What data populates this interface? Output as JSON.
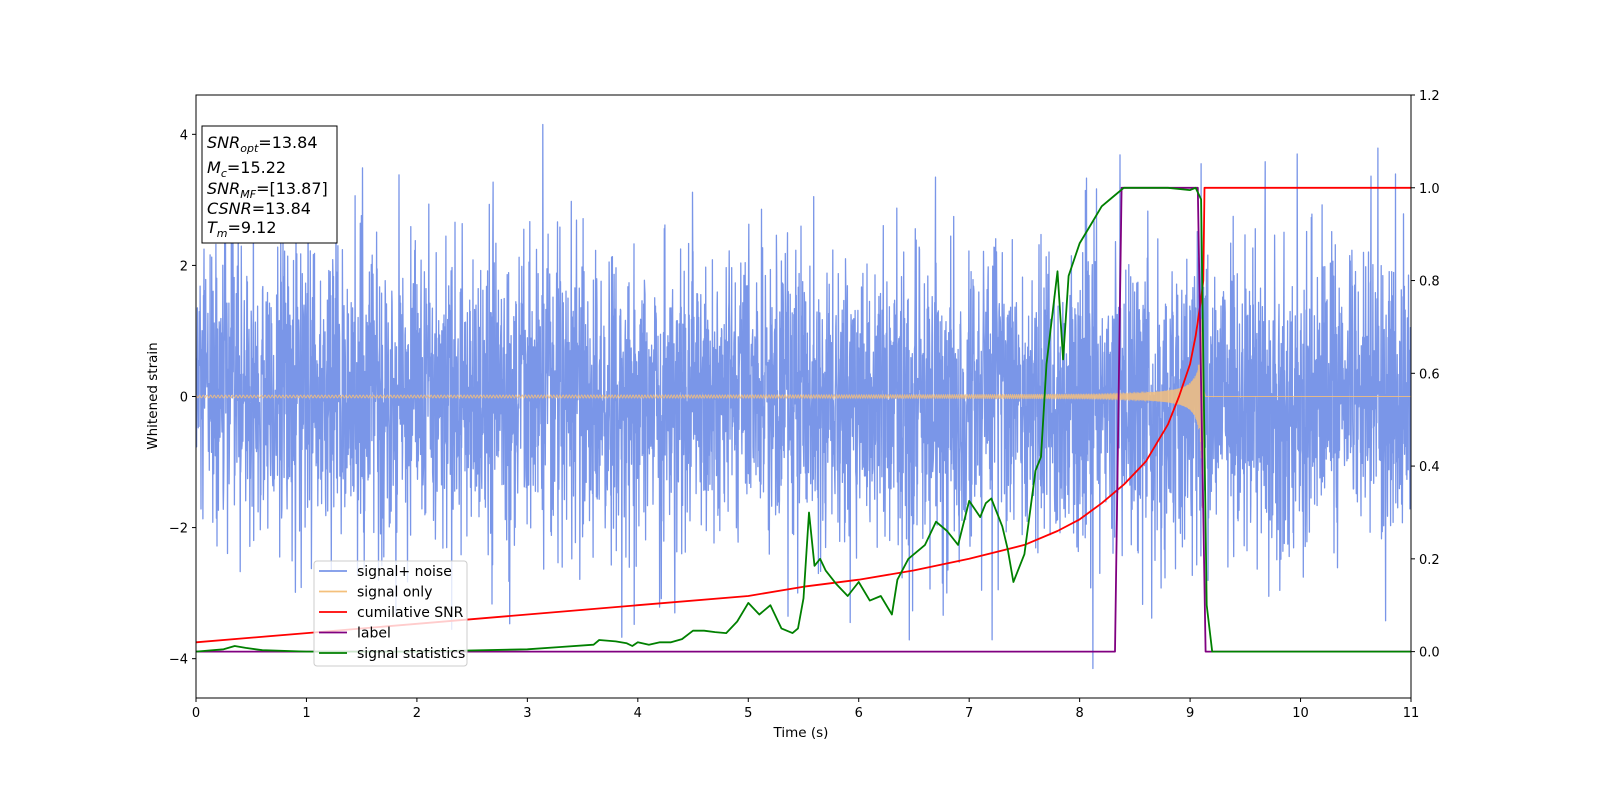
{
  "chart_data": {
    "type": "line",
    "title": "",
    "xlabel": "Time (s)",
    "ylabel": "Whitened strain",
    "y2label": "",
    "xlim": [
      0,
      11
    ],
    "ylim": [
      -4.6,
      4.6
    ],
    "y2lim": [
      -0.1,
      1.2
    ],
    "x_ticks": [
      0,
      1,
      2,
      3,
      4,
      5,
      6,
      7,
      8,
      9,
      10,
      11
    ],
    "y_ticks": [
      -4,
      -2,
      0,
      2,
      4
    ],
    "y2_ticks": [
      0.0,
      0.2,
      0.4,
      0.6,
      0.8,
      1.0,
      1.2
    ],
    "x_tick_labels": [
      "0",
      "1",
      "2",
      "3",
      "4",
      "5",
      "6",
      "7",
      "8",
      "9",
      "10",
      "11"
    ],
    "y_tick_labels": [
      "−4",
      "−2",
      "0",
      "2",
      "4"
    ],
    "y2_tick_labels": [
      "0.0",
      "0.2",
      "0.4",
      "0.6",
      "0.8",
      "1.0",
      "1.2"
    ],
    "grid": false,
    "legend_position": "lower-left",
    "info_box": {
      "position": "top-left",
      "lines": [
        {
          "base": "SNR",
          "sub": "opt",
          "rest": "=13.84"
        },
        {
          "base": "M",
          "sub": "c",
          "rest": "=15.22"
        },
        {
          "base": "SNR",
          "sub": "MF",
          "rest": "=[13.87]"
        },
        {
          "base": "CSNR",
          "sub": "",
          "rest": "=13.84"
        },
        {
          "base": "T",
          "sub": "m",
          "rest": "=9.12"
        }
      ]
    },
    "series": [
      {
        "name": "signal+ noise",
        "axis": "left",
        "color": "#7a96e8",
        "style": "noise",
        "sample_rate": 400,
        "std": 1.15,
        "spike_range": [
          -3.9,
          4.15
        ],
        "notable_spikes": [
          [
            3.14,
            4.15
          ],
          [
            8.12,
            -4.15
          ],
          [
            9.1,
            3.55
          ],
          [
            9.97,
            3.7
          ]
        ]
      },
      {
        "name": "signal only",
        "axis": "left",
        "color": "#f4c07c",
        "style": "chirp",
        "merger_time": 9.12,
        "early_amplitude": 0.02,
        "peak_amplitude": 1.8
      },
      {
        "name": "cumilative SNR",
        "axis": "right",
        "color": "#ff0000",
        "x": [
          0,
          1,
          2,
          3,
          4,
          5,
          5.5,
          6,
          6.5,
          7,
          7.5,
          7.8,
          8,
          8.2,
          8.4,
          8.6,
          8.8,
          8.9,
          9.0,
          9.05,
          9.1,
          9.12,
          9.13,
          11
        ],
        "y": [
          0.02,
          0.04,
          0.06,
          0.08,
          0.1,
          0.12,
          0.14,
          0.155,
          0.175,
          0.2,
          0.23,
          0.26,
          0.285,
          0.32,
          0.36,
          0.41,
          0.49,
          0.55,
          0.62,
          0.68,
          0.76,
          0.8,
          1.0,
          1.0
        ]
      },
      {
        "name": "label",
        "axis": "right",
        "color": "#800080",
        "x": [
          0,
          8.32,
          8.38,
          9.07,
          9.14,
          11
        ],
        "y": [
          0,
          0,
          1,
          1,
          0,
          0
        ]
      },
      {
        "name": "signal statistics",
        "axis": "right",
        "color": "#008000",
        "x": [
          0,
          0.25,
          0.35,
          0.45,
          0.6,
          1,
          2,
          3,
          3.3,
          3.6,
          3.65,
          3.8,
          3.9,
          3.95,
          4.0,
          4.1,
          4.2,
          4.3,
          4.4,
          4.5,
          4.6,
          4.7,
          4.8,
          4.9,
          5.0,
          5.1,
          5.2,
          5.3,
          5.4,
          5.45,
          5.5,
          5.55,
          5.6,
          5.65,
          5.7,
          5.8,
          5.9,
          6.0,
          6.1,
          6.2,
          6.3,
          6.35,
          6.45,
          6.55,
          6.6,
          6.7,
          6.8,
          6.9,
          7.0,
          7.1,
          7.15,
          7.2,
          7.3,
          7.35,
          7.4,
          7.5,
          7.6,
          7.65,
          7.7,
          7.8,
          7.85,
          7.9,
          8.0,
          8.1,
          8.2,
          8.3,
          8.4,
          8.6,
          8.8,
          9.0,
          9.05,
          9.1,
          9.15,
          9.2,
          11
        ],
        "y": [
          0.0,
          0.005,
          0.012,
          0.008,
          0.003,
          0.0,
          0.0,
          0.005,
          0.01,
          0.015,
          0.025,
          0.022,
          0.018,
          0.012,
          0.02,
          0.015,
          0.02,
          0.02,
          0.027,
          0.045,
          0.045,
          0.042,
          0.04,
          0.065,
          0.105,
          0.08,
          0.1,
          0.05,
          0.04,
          0.05,
          0.115,
          0.3,
          0.185,
          0.2,
          0.175,
          0.145,
          0.12,
          0.15,
          0.11,
          0.12,
          0.08,
          0.155,
          0.2,
          0.22,
          0.23,
          0.28,
          0.26,
          0.23,
          0.325,
          0.29,
          0.32,
          0.33,
          0.27,
          0.22,
          0.15,
          0.21,
          0.39,
          0.42,
          0.62,
          0.82,
          0.63,
          0.81,
          0.88,
          0.92,
          0.96,
          0.98,
          1.0,
          1.0,
          1.0,
          0.995,
          1.0,
          0.975,
          0.1,
          0.0,
          0.0
        ]
      }
    ]
  }
}
